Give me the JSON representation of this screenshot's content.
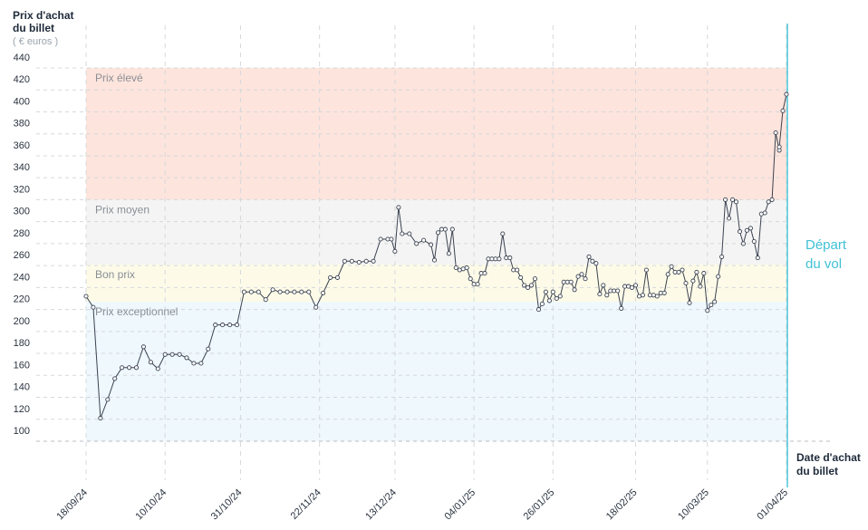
{
  "chart_data": {
    "type": "line",
    "ylabel": "Prix d'achat du billet",
    "yunit": "( € euros )",
    "xlabel": "Date d'achat du billet",
    "annotation": "Départ du vol",
    "ylim": [
      100,
      440
    ],
    "yticks": [
      100,
      120,
      140,
      160,
      180,
      200,
      220,
      240,
      260,
      280,
      300,
      320,
      340,
      360,
      380,
      400,
      420,
      440
    ],
    "xlim": [
      "2024-09-18",
      "2025-04-01"
    ],
    "xticks": [
      {
        "date": "2024-09-18",
        "label": "18/09/24"
      },
      {
        "date": "2024-10-10",
        "label": "10/10/24"
      },
      {
        "date": "2024-10-31",
        "label": "31/10/24"
      },
      {
        "date": "2024-11-22",
        "label": "22/11/24"
      },
      {
        "date": "2024-12-13",
        "label": "13/12/24"
      },
      {
        "date": "2025-01-04",
        "label": "04/01/25"
      },
      {
        "date": "2025-01-26",
        "label": "26/01/25"
      },
      {
        "date": "2025-02-18",
        "label": "18/02/25"
      },
      {
        "date": "2025-03-10",
        "label": "10/03/25"
      },
      {
        "date": "2025-04-01",
        "label": "01/04/25"
      }
    ],
    "bands": [
      {
        "label": "Prix exceptionnel",
        "from": 100,
        "to": 227,
        "color": "#eef8fd"
      },
      {
        "label": "Bon prix",
        "from": 227,
        "to": 261,
        "color": "#fdfbe8"
      },
      {
        "label": "Prix moyen",
        "from": 261,
        "to": 320,
        "color": "#f4f4f4"
      },
      {
        "label": "Prix élevé",
        "from": 320,
        "to": 440,
        "color": "#fde4dc"
      }
    ],
    "grid": true,
    "colors": {
      "line": "#3b4250",
      "marker_fill": "#ffffff",
      "departure_line": "#3fc1d6",
      "grid": "#d5d8dc"
    },
    "series": [
      {
        "points": [
          [
            "2024-09-18",
            232
          ],
          [
            "2024-09-20",
            222
          ],
          [
            "2024-09-22",
            121
          ],
          [
            "2024-09-24",
            138
          ],
          [
            "2024-09-26",
            157
          ],
          [
            "2024-09-28",
            167
          ],
          [
            "2024-09-30",
            167
          ],
          [
            "2024-10-02",
            167
          ],
          [
            "2024-10-04",
            186
          ],
          [
            "2024-10-06",
            172
          ],
          [
            "2024-10-08",
            166
          ],
          [
            "2024-10-10",
            179
          ],
          [
            "2024-10-12",
            179
          ],
          [
            "2024-10-14",
            179
          ],
          [
            "2024-10-16",
            176
          ],
          [
            "2024-10-18",
            171
          ],
          [
            "2024-10-20",
            171
          ],
          [
            "2024-10-22",
            184
          ],
          [
            "2024-10-24",
            206
          ],
          [
            "2024-10-26",
            206
          ],
          [
            "2024-10-28",
            206
          ],
          [
            "2024-10-30",
            206
          ],
          [
            "2024-11-01",
            236
          ],
          [
            "2024-11-03",
            236
          ],
          [
            "2024-11-05",
            236
          ],
          [
            "2024-11-07",
            229
          ],
          [
            "2024-11-09",
            238
          ],
          [
            "2024-11-11",
            236
          ],
          [
            "2024-11-13",
            236
          ],
          [
            "2024-11-15",
            236
          ],
          [
            "2024-11-17",
            236
          ],
          [
            "2024-11-19",
            236
          ],
          [
            "2024-11-21",
            222
          ],
          [
            "2024-11-23",
            235
          ],
          [
            "2024-11-25",
            249
          ],
          [
            "2024-11-27",
            249
          ],
          [
            "2024-11-29",
            264
          ],
          [
            "2024-12-01",
            264
          ],
          [
            "2024-12-03",
            263
          ],
          [
            "2024-12-05",
            264
          ],
          [
            "2024-12-07",
            264
          ],
          [
            "2024-12-09",
            284
          ],
          [
            "2024-12-11",
            284
          ],
          [
            "2024-12-12",
            284
          ],
          [
            "2024-12-13",
            273
          ],
          [
            "2024-12-14",
            313
          ],
          [
            "2024-12-15",
            289
          ],
          [
            "2024-12-17",
            289
          ],
          [
            "2024-12-19",
            280
          ],
          [
            "2024-12-21",
            283
          ],
          [
            "2024-12-23",
            279
          ],
          [
            "2024-12-24",
            265
          ],
          [
            "2024-12-25",
            290
          ],
          [
            "2024-12-26",
            293
          ],
          [
            "2024-12-27",
            293
          ],
          [
            "2024-12-28",
            271
          ],
          [
            "2024-12-29",
            293
          ],
          [
            "2024-12-30",
            258
          ],
          [
            "2024-12-31",
            256
          ],
          [
            "2025-01-01",
            257
          ],
          [
            "2025-01-02",
            258
          ],
          [
            "2025-01-03",
            248
          ],
          [
            "2025-01-04",
            243
          ],
          [
            "2025-01-05",
            243
          ],
          [
            "2025-01-06",
            253
          ],
          [
            "2025-01-07",
            253
          ],
          [
            "2025-01-08",
            266
          ],
          [
            "2025-01-09",
            266
          ],
          [
            "2025-01-10",
            266
          ],
          [
            "2025-01-11",
            266
          ],
          [
            "2025-01-12",
            289
          ],
          [
            "2025-01-13",
            267
          ],
          [
            "2025-01-14",
            267
          ],
          [
            "2025-01-15",
            256
          ],
          [
            "2025-01-16",
            256
          ],
          [
            "2025-01-17",
            249
          ],
          [
            "2025-01-18",
            242
          ],
          [
            "2025-01-19",
            240
          ],
          [
            "2025-01-20",
            242
          ],
          [
            "2025-01-21",
            248
          ],
          [
            "2025-01-22",
            220
          ],
          [
            "2025-01-23",
            225
          ],
          [
            "2025-01-24",
            236
          ],
          [
            "2025-01-25",
            228
          ],
          [
            "2025-01-26",
            236
          ],
          [
            "2025-01-27",
            230
          ],
          [
            "2025-01-28",
            232
          ],
          [
            "2025-01-29",
            245
          ],
          [
            "2025-01-30",
            245
          ],
          [
            "2025-01-31",
            245
          ],
          [
            "2025-02-01",
            238
          ],
          [
            "2025-02-02",
            250
          ],
          [
            "2025-02-03",
            252
          ],
          [
            "2025-02-04",
            248
          ],
          [
            "2025-02-05",
            268
          ],
          [
            "2025-02-06",
            264
          ],
          [
            "2025-02-07",
            262
          ],
          [
            "2025-02-08",
            234
          ],
          [
            "2025-02-09",
            242
          ],
          [
            "2025-02-10",
            233
          ],
          [
            "2025-02-11",
            237
          ],
          [
            "2025-02-12",
            237
          ],
          [
            "2025-02-13",
            237
          ],
          [
            "2025-02-14",
            221
          ],
          [
            "2025-02-15",
            241
          ],
          [
            "2025-02-16",
            241
          ],
          [
            "2025-02-17",
            240
          ],
          [
            "2025-02-18",
            242
          ],
          [
            "2025-02-19",
            232
          ],
          [
            "2025-02-20",
            233
          ],
          [
            "2025-02-21",
            256
          ],
          [
            "2025-02-22",
            233
          ],
          [
            "2025-02-23",
            233
          ],
          [
            "2025-02-24",
            232
          ],
          [
            "2025-02-25",
            235
          ],
          [
            "2025-02-26",
            235
          ],
          [
            "2025-02-27",
            252
          ],
          [
            "2025-02-28",
            259
          ],
          [
            "2025-03-01",
            254
          ],
          [
            "2025-03-02",
            254
          ],
          [
            "2025-03-03",
            256
          ],
          [
            "2025-03-04",
            244
          ],
          [
            "2025-03-05",
            226
          ],
          [
            "2025-03-06",
            246
          ],
          [
            "2025-03-07",
            254
          ],
          [
            "2025-03-08",
            241
          ],
          [
            "2025-03-09",
            253
          ],
          [
            "2025-03-10",
            219
          ],
          [
            "2025-03-11",
            224
          ],
          [
            "2025-03-12",
            227
          ],
          [
            "2025-03-13",
            250
          ],
          [
            "2025-03-14",
            268
          ],
          [
            "2025-03-15",
            320
          ],
          [
            "2025-03-16",
            303
          ],
          [
            "2025-03-17",
            320
          ],
          [
            "2025-03-18",
            318
          ],
          [
            "2025-03-19",
            291
          ],
          [
            "2025-03-20",
            280
          ],
          [
            "2025-03-21",
            292
          ],
          [
            "2025-03-22",
            294
          ],
          [
            "2025-03-23",
            282
          ],
          [
            "2025-03-24",
            267
          ],
          [
            "2025-03-25",
            307
          ],
          [
            "2025-03-26",
            308
          ],
          [
            "2025-03-27",
            318
          ],
          [
            "2025-03-28",
            320
          ],
          [
            "2025-03-29",
            381
          ],
          [
            "2025-03-30",
            365
          ],
          [
            "2025-03-30",
            368
          ],
          [
            "2025-03-31",
            401
          ],
          [
            "2025-04-01",
            416
          ]
        ]
      }
    ]
  }
}
